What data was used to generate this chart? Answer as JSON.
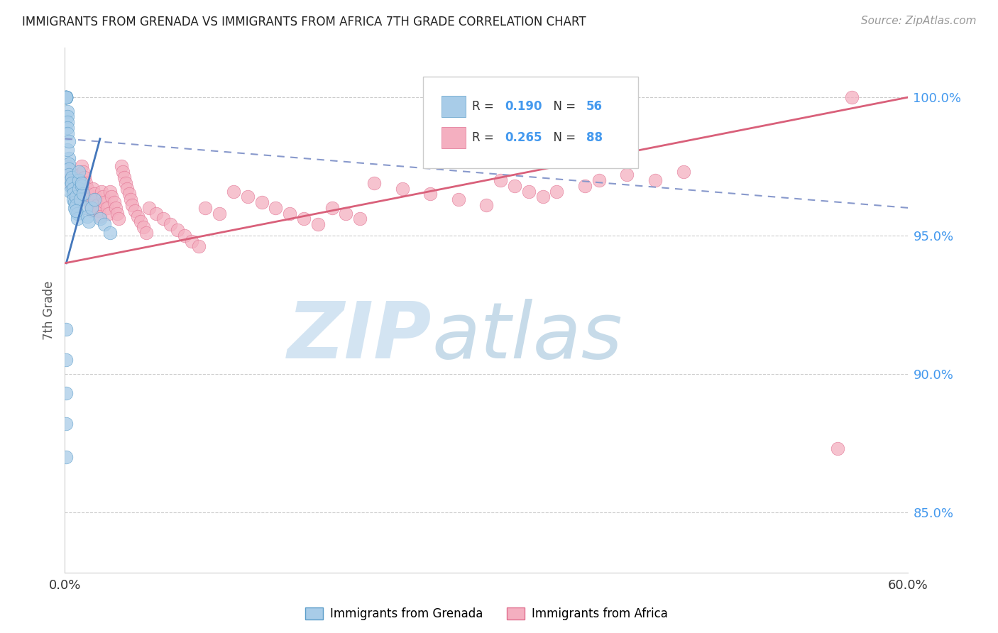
{
  "title": "IMMIGRANTS FROM GRENADA VS IMMIGRANTS FROM AFRICA 7TH GRADE CORRELATION CHART",
  "source": "Source: ZipAtlas.com",
  "ylabel": "7th Grade",
  "xlim": [
    0.0,
    0.6
  ],
  "ylim": [
    0.828,
    1.018
  ],
  "y_ticks": [
    0.85,
    0.9,
    0.95,
    1.0
  ],
  "y_tick_labels": [
    "85.0%",
    "90.0%",
    "95.0%",
    "100.0%"
  ],
  "x_ticks": [
    0.0,
    0.12,
    0.24,
    0.36,
    0.48,
    0.6
  ],
  "x_tick_labels": [
    "0.0%",
    "",
    "",
    "",
    "",
    "60.0%"
  ],
  "legend_label1": "Immigrants from Grenada",
  "legend_label2": "Immigrants from Africa",
  "R1": 0.19,
  "N1": 56,
  "R2": 0.265,
  "N2": 88,
  "color_blue": "#a8cce8",
  "color_blue_dark": "#5b9dc9",
  "color_blue_line": "#4477bb",
  "color_pink": "#f4afc0",
  "color_pink_dark": "#e07090",
  "color_pink_line": "#d9607a",
  "color_right_axis": "#4499ee",
  "color_grid": "#cccccc",
  "color_title": "#222222",
  "color_source": "#999999",
  "dot_size": 180,
  "blue_line_x0": 0.0,
  "blue_line_x1": 0.6,
  "blue_line_y0": 0.985,
  "blue_line_y1": 0.96,
  "pink_line_x0": 0.0,
  "pink_line_x1": 0.6,
  "pink_line_y0": 0.94,
  "pink_line_y1": 1.0,
  "blue_dots_x": [
    0.001,
    0.001,
    0.001,
    0.001,
    0.001,
    0.001,
    0.001,
    0.001,
    0.001,
    0.001,
    0.002,
    0.002,
    0.002,
    0.002,
    0.002,
    0.003,
    0.003,
    0.003,
    0.003,
    0.004,
    0.004,
    0.004,
    0.005,
    0.005,
    0.006,
    0.006,
    0.006,
    0.007,
    0.007,
    0.008,
    0.008,
    0.009,
    0.009,
    0.01,
    0.01,
    0.011,
    0.012,
    0.013,
    0.015,
    0.016,
    0.017,
    0.019,
    0.021,
    0.025,
    0.028,
    0.032,
    0.002,
    0.003,
    0.008,
    0.01,
    0.012,
    0.001,
    0.001,
    0.001,
    0.001,
    0.001
  ],
  "blue_dots_y": [
    1.0,
    1.0,
    1.0,
    1.0,
    1.0,
    1.0,
    1.0,
    1.0,
    1.0,
    1.0,
    0.995,
    0.993,
    0.991,
    0.989,
    0.987,
    0.978,
    0.976,
    0.974,
    0.972,
    0.97,
    0.968,
    0.966,
    0.971,
    0.969,
    0.967,
    0.965,
    0.963,
    0.962,
    0.96,
    0.964,
    0.961,
    0.958,
    0.956,
    0.97,
    0.967,
    0.963,
    0.968,
    0.965,
    0.96,
    0.957,
    0.955,
    0.96,
    0.963,
    0.956,
    0.954,
    0.951,
    0.981,
    0.984,
    0.959,
    0.973,
    0.969,
    0.916,
    0.905,
    0.893,
    0.882,
    0.87
  ],
  "pink_dots_x": [
    0.002,
    0.003,
    0.004,
    0.005,
    0.006,
    0.006,
    0.007,
    0.008,
    0.009,
    0.01,
    0.01,
    0.011,
    0.012,
    0.013,
    0.014,
    0.015,
    0.016,
    0.016,
    0.017,
    0.018,
    0.019,
    0.02,
    0.021,
    0.022,
    0.023,
    0.024,
    0.025,
    0.026,
    0.027,
    0.028,
    0.03,
    0.031,
    0.032,
    0.033,
    0.035,
    0.036,
    0.037,
    0.038,
    0.04,
    0.041,
    0.042,
    0.043,
    0.044,
    0.046,
    0.047,
    0.048,
    0.05,
    0.052,
    0.054,
    0.056,
    0.058,
    0.06,
    0.065,
    0.07,
    0.075,
    0.08,
    0.085,
    0.09,
    0.095,
    0.1,
    0.11,
    0.12,
    0.13,
    0.14,
    0.15,
    0.16,
    0.17,
    0.18,
    0.19,
    0.2,
    0.21,
    0.22,
    0.24,
    0.26,
    0.28,
    0.3,
    0.31,
    0.32,
    0.33,
    0.34,
    0.35,
    0.37,
    0.38,
    0.4,
    0.42,
    0.44,
    0.55,
    0.56
  ],
  "pink_dots_y": [
    0.975,
    0.972,
    0.97,
    0.968,
    0.972,
    0.969,
    0.967,
    0.965,
    0.963,
    0.97,
    0.968,
    0.966,
    0.975,
    0.973,
    0.971,
    0.969,
    0.967,
    0.965,
    0.963,
    0.961,
    0.959,
    0.967,
    0.965,
    0.963,
    0.961,
    0.959,
    0.957,
    0.966,
    0.964,
    0.962,
    0.96,
    0.958,
    0.966,
    0.964,
    0.962,
    0.96,
    0.958,
    0.956,
    0.975,
    0.973,
    0.971,
    0.969,
    0.967,
    0.965,
    0.963,
    0.961,
    0.959,
    0.957,
    0.955,
    0.953,
    0.951,
    0.96,
    0.958,
    0.956,
    0.954,
    0.952,
    0.95,
    0.948,
    0.946,
    0.96,
    0.958,
    0.966,
    0.964,
    0.962,
    0.96,
    0.958,
    0.956,
    0.954,
    0.96,
    0.958,
    0.956,
    0.969,
    0.967,
    0.965,
    0.963,
    0.961,
    0.97,
    0.968,
    0.966,
    0.964,
    0.966,
    0.968,
    0.97,
    0.972,
    0.97,
    0.973,
    0.873,
    1.0
  ]
}
